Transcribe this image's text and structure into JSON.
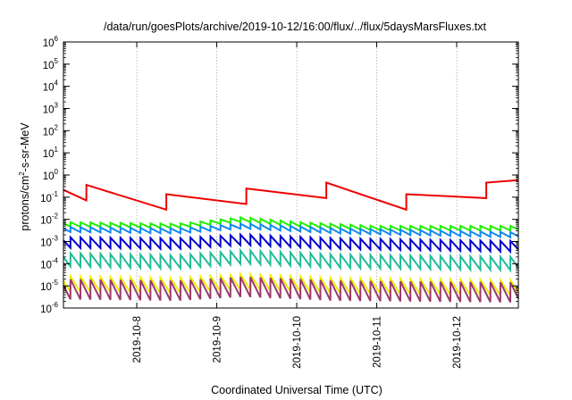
{
  "chart_data": {
    "type": "line",
    "title": "/data/run/goesPlots/archive/2019-10-12/16:00/flux/../flux/5daysMarsFluxes.txt",
    "xlabel": "Coordinated Universal Time (UTC)",
    "ylabel": {
      "base": "protons/cm",
      "sup": "2",
      "rest": "-s-sr-MeV"
    },
    "yscale": "log",
    "ylim": [
      1e-06,
      1000000.0
    ],
    "xlim": [
      "2019-10-07T02:00",
      "2019-10-12T18:30"
    ],
    "x_ticks": [
      "2019-10-8",
      "2019-10-9",
      "2019-10-10",
      "2019-10-11",
      "2019-10-12"
    ],
    "y_ticks": [
      {
        "base": "10",
        "exp": "-6"
      },
      {
        "base": "10",
        "exp": "-5"
      },
      {
        "base": "10",
        "exp": "-4"
      },
      {
        "base": "10",
        "exp": "-3"
      },
      {
        "base": "10",
        "exp": "-2"
      },
      {
        "base": "10",
        "exp": "-1"
      },
      {
        "base": "10",
        "exp": "0"
      },
      {
        "base": "10",
        "exp": "1"
      },
      {
        "base": "10",
        "exp": "2"
      },
      {
        "base": "10",
        "exp": "3"
      },
      {
        "base": "10",
        "exp": "4"
      },
      {
        "base": "10",
        "exp": "5"
      },
      {
        "base": "10",
        "exp": "6"
      }
    ],
    "grid": {
      "x": true,
      "y": false,
      "style": "dotted"
    },
    "legend": "none",
    "series": [
      {
        "color": "#ee0000",
        "period_hours": 24,
        "jumps": 5,
        "x": [
          "2019-10-07T02:00",
          "2019-10-07T14:00",
          "2019-10-07T17:00",
          "2019-10-08T09:00",
          "2019-10-08T13:00",
          "2019-10-09T10:00",
          "2019-10-09T13:00",
          "2019-10-09T17:00",
          "2019-10-10T09:00",
          "2019-10-10T13:00",
          "2019-10-11T09:00",
          "2019-10-11T13:00",
          "2019-10-11T17:00",
          "2019-10-12T09:00",
          "2019-10-12T13:00",
          "2019-10-12T18:30"
        ],
        "y": [
          0.3,
          0.1,
          0.8,
          0.06,
          0.6,
          0.1,
          0.6,
          1.0,
          0.2,
          1.0,
          0.06,
          0.8,
          1.2,
          0.2,
          0.2,
          0.5
        ]
      },
      {
        "color": "#22ee00",
        "period_hours": 3,
        "jumps": 1.6,
        "x": [
          "2019-10-07T02:00",
          "2019-10-08T12:00",
          "2019-10-09T08:00",
          "2019-10-10T00:00",
          "2019-10-11T00:00",
          "2019-10-12T18:30"
        ],
        "y": [
          0.006,
          0.005,
          0.01,
          0.006,
          0.004,
          0.004
        ]
      },
      {
        "color": "#1188ee",
        "period_hours": 3,
        "jumps": 1.7,
        "x": [
          "2019-10-07T02:00",
          "2019-10-08T12:00",
          "2019-10-09T08:00",
          "2019-10-10T12:00",
          "2019-10-12T18:30"
        ],
        "y": [
          0.0035,
          0.003,
          0.005,
          0.003,
          0.002
        ]
      },
      {
        "color": "#0000cc",
        "period_hours": 3,
        "jumps": 3,
        "x": [
          "2019-10-07T02:00",
          "2019-10-08T12:00",
          "2019-10-09T08:00",
          "2019-10-10T12:00",
          "2019-10-12T18:30"
        ],
        "y": [
          0.0009,
          0.0008,
          0.0012,
          0.0008,
          0.0006
        ]
      },
      {
        "color": "#22bb99",
        "period_hours": 3,
        "jumps": 4,
        "x": [
          "2019-10-07T02:00",
          "2019-10-08T12:00",
          "2019-10-09T08:00",
          "2019-10-10T12:00",
          "2019-10-12T18:30"
        ],
        "y": [
          0.00015,
          0.00012,
          0.0002,
          0.00013,
          0.0001
        ]
      },
      {
        "color": "#eeee00",
        "period_hours": 3,
        "jumps": 5,
        "x": [
          "2019-10-07T02:00",
          "2019-10-08T12:00",
          "2019-10-09T08:00",
          "2019-10-10T12:00",
          "2019-10-12T18:30"
        ],
        "y": [
          1.2e-05,
          1e-05,
          1.5e-05,
          1e-05,
          8e-06
        ]
      },
      {
        "color": "#9a3c6e",
        "period_hours": 3,
        "jumps": 8,
        "x": [
          "2019-10-07T02:00",
          "2019-10-08T12:00",
          "2019-10-09T08:00",
          "2019-10-10T12:00",
          "2019-10-12T18:30"
        ],
        "y": [
          7e-06,
          6e-06,
          9e-06,
          6e-06,
          5e-06
        ]
      }
    ]
  }
}
